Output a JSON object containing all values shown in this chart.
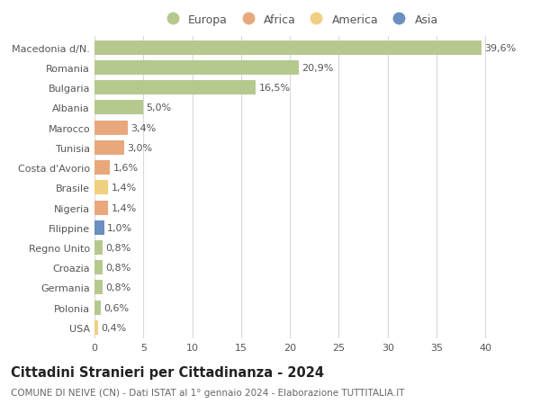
{
  "countries": [
    "Macedonia d/N.",
    "Romania",
    "Bulgaria",
    "Albania",
    "Marocco",
    "Tunisia",
    "Costa d'Avorio",
    "Brasile",
    "Nigeria",
    "Filippine",
    "Regno Unito",
    "Croazia",
    "Germania",
    "Polonia",
    "USA"
  ],
  "values": [
    39.6,
    20.9,
    16.5,
    5.0,
    3.4,
    3.0,
    1.6,
    1.4,
    1.4,
    1.0,
    0.8,
    0.8,
    0.8,
    0.6,
    0.4
  ],
  "labels": [
    "39,6%",
    "20,9%",
    "16,5%",
    "5,0%",
    "3,4%",
    "3,0%",
    "1,6%",
    "1,4%",
    "1,4%",
    "1,0%",
    "0,8%",
    "0,8%",
    "0,8%",
    "0,6%",
    "0,4%"
  ],
  "continents": [
    "Europa",
    "Europa",
    "Europa",
    "Europa",
    "Africa",
    "Africa",
    "Africa",
    "America",
    "Africa",
    "Asia",
    "Europa",
    "Europa",
    "Europa",
    "Europa",
    "America"
  ],
  "colors": {
    "Europa": "#b5c98e",
    "Africa": "#e8a87c",
    "America": "#f0d080",
    "Asia": "#6a8fc0"
  },
  "title": "Cittadini Stranieri per Cittadinanza - 2024",
  "subtitle": "COMUNE DI NEIVE (CN) - Dati ISTAT al 1° gennaio 2024 - Elaborazione TUTTITALIA.IT",
  "xlim": [
    0,
    42
  ],
  "xticks": [
    0,
    5,
    10,
    15,
    20,
    25,
    30,
    35,
    40
  ],
  "background_color": "#ffffff",
  "grid_color": "#d8d8d8",
  "bar_height": 0.72,
  "label_fontsize": 8,
  "tick_fontsize": 8,
  "title_fontsize": 10.5,
  "subtitle_fontsize": 7.5,
  "legend_fontsize": 9
}
